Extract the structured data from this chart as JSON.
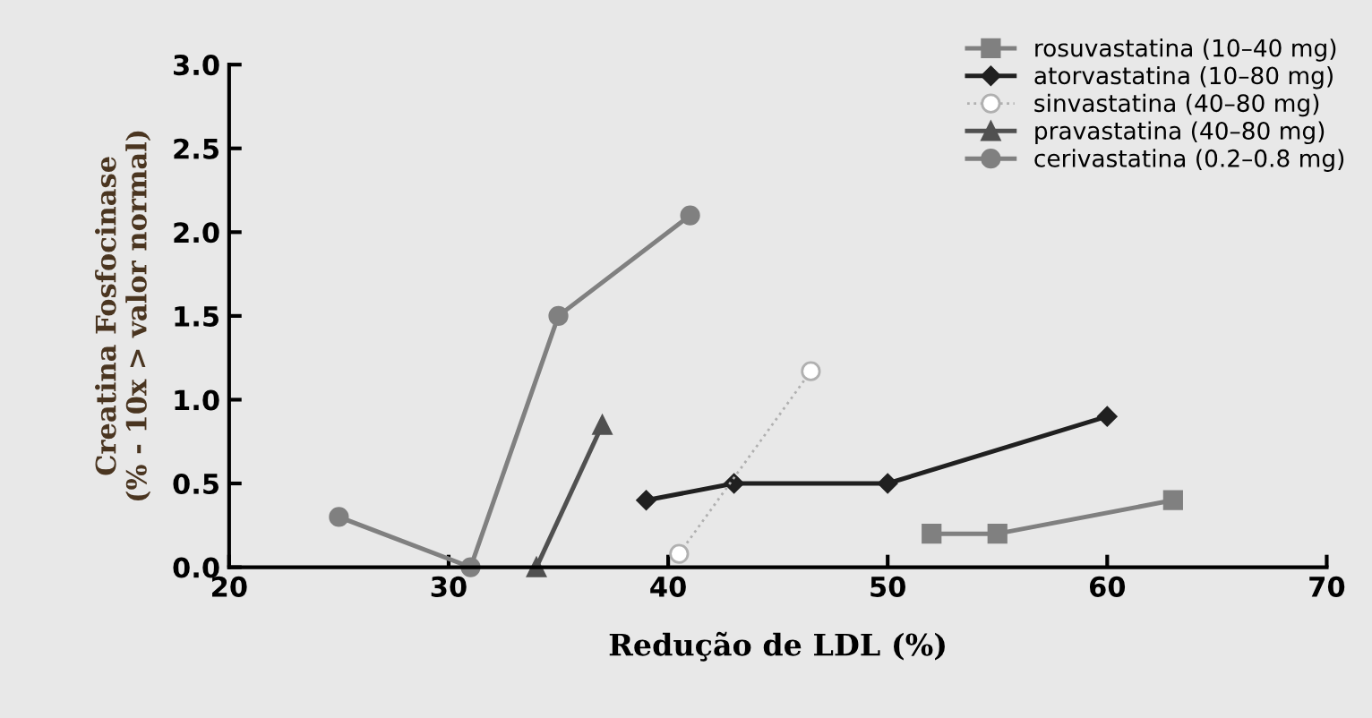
{
  "chart_data": {
    "type": "line",
    "xlabel": "Redução de LDL (%)",
    "ylabel": "Creatina Fosfocinase\n(% - 10x > valor normal)",
    "xlim": [
      20,
      70
    ],
    "xticks": [
      20,
      30,
      40,
      50,
      60,
      70
    ],
    "ylim": [
      0,
      3.0
    ],
    "yticks": [
      {
        "value": 0,
        "label": "0.0"
      },
      {
        "value": 0.5,
        "label": "0.5"
      },
      {
        "value": 1.0,
        "label": "1.0"
      },
      {
        "value": 1.5,
        "label": "1.5"
      },
      {
        "value": 2.0,
        "label": "2.0"
      },
      {
        "value": 2.5,
        "label": "2.5"
      },
      {
        "value": 3.0,
        "label": "3.0"
      }
    ],
    "grid": false,
    "legend": "top right",
    "series": [
      {
        "name": "rosuvastatina (10–40 mg)",
        "color": "#808080",
        "marker": "square",
        "line_style": "solid",
        "x": [
          52,
          55,
          63
        ],
        "values": [
          0.2,
          0.2,
          0.4
        ]
      },
      {
        "name": "atorvastatina (10–80 mg)",
        "color": "#202020",
        "marker": "diamond",
        "line_style": "solid",
        "x": [
          39,
          43,
          50,
          60
        ],
        "values": [
          0.4,
          0.5,
          0.5,
          0.9
        ]
      },
      {
        "name": "sinvastatina (40–80 mg)",
        "color": "#b0b0b0",
        "marker": "circle",
        "line_style": "dotted",
        "x": [
          40.5,
          46.5
        ],
        "values": [
          0.08,
          1.17
        ]
      },
      {
        "name": "pravastatina (40–80 mg)",
        "color": "#505050",
        "marker": "triangle",
        "line_style": "solid",
        "x": [
          34,
          37
        ],
        "values": [
          0,
          0.85
        ]
      },
      {
        "name": "cerivastatina (0.2–0.8 mg)",
        "color": "#808080",
        "marker": "circle",
        "line_style": "solid",
        "x": [
          25,
          31,
          35,
          41
        ],
        "values": [
          0.3,
          0,
          1.5,
          2.1
        ]
      }
    ]
  }
}
